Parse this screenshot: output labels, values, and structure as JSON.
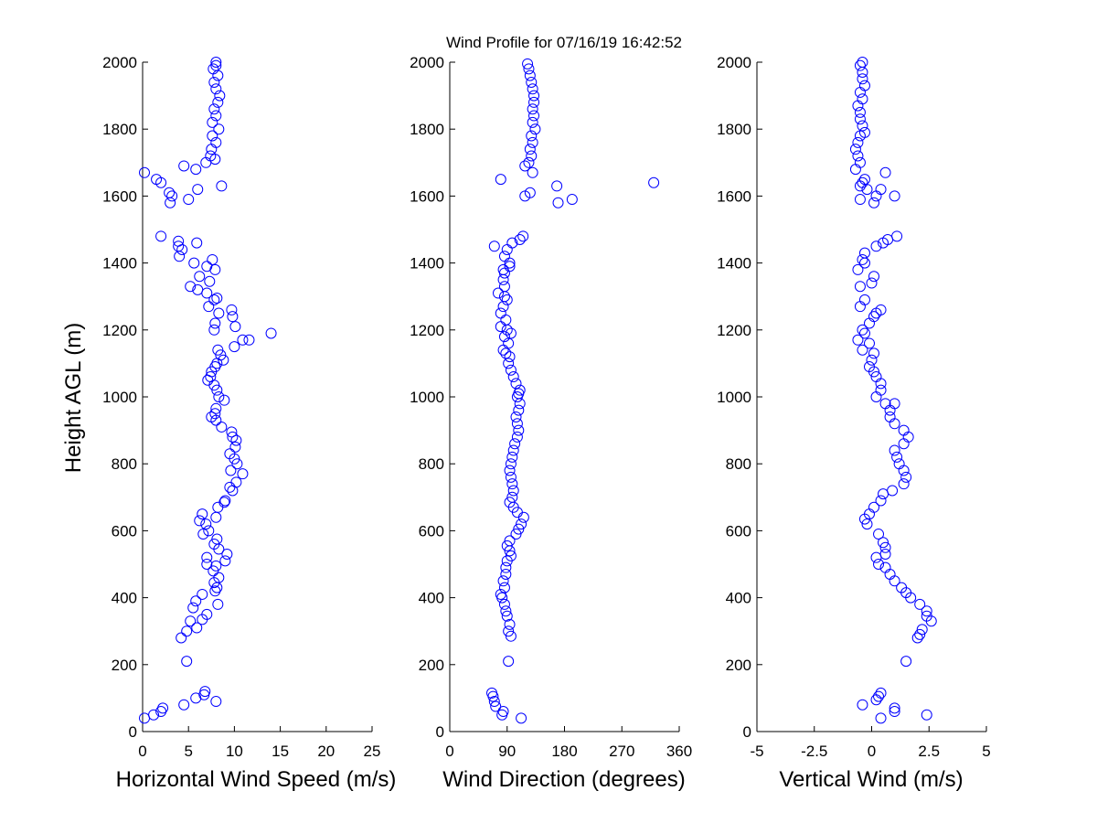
{
  "title": "Wind Profile for  07/16/19 16:42:52",
  "marker_color": "#0000ff",
  "chart_data": [
    {
      "type": "scatter",
      "xlabel": "Horizontal Wind Speed (m/s)",
      "ylabel": "Height AGL (m)",
      "xlim": [
        0,
        25
      ],
      "ylim": [
        0,
        2000
      ],
      "xticks": [
        "0",
        "5",
        "10",
        "15",
        "20",
        "25"
      ],
      "xtick_values": [
        0,
        5,
        10,
        15,
        20,
        25
      ],
      "yticks": [
        "0",
        "200",
        "400",
        "600",
        "800",
        "1000",
        "1200",
        "1400",
        "1600",
        "1800",
        "2000"
      ],
      "ytick_values": [
        0,
        200,
        400,
        600,
        800,
        1000,
        1200,
        1400,
        1600,
        1800,
        2000
      ],
      "grid": false,
      "points": [
        [
          0.2,
          40
        ],
        [
          1.2,
          50
        ],
        [
          2.0,
          60
        ],
        [
          2.2,
          70
        ],
        [
          4.5,
          80
        ],
        [
          5.8,
          100
        ],
        [
          6.7,
          110
        ],
        [
          6.8,
          120
        ],
        [
          8.0,
          90
        ],
        [
          4.8,
          210
        ],
        [
          4.2,
          280
        ],
        [
          4.8,
          300
        ],
        [
          5.9,
          310
        ],
        [
          5.2,
          330
        ],
        [
          6.5,
          335
        ],
        [
          7.0,
          350
        ],
        [
          5.5,
          370
        ],
        [
          5.8,
          390
        ],
        [
          8.2,
          380
        ],
        [
          6.5,
          410
        ],
        [
          7.9,
          420
        ],
        [
          8.1,
          430
        ],
        [
          7.8,
          445
        ],
        [
          8.3,
          460
        ],
        [
          7.7,
          480
        ],
        [
          8.0,
          495
        ],
        [
          7.0,
          500
        ],
        [
          9.0,
          510
        ],
        [
          7.0,
          520
        ],
        [
          9.2,
          530
        ],
        [
          8.3,
          545
        ],
        [
          7.8,
          560
        ],
        [
          8.1,
          575
        ],
        [
          6.6,
          590
        ],
        [
          7.2,
          600
        ],
        [
          6.2,
          630
        ],
        [
          6.5,
          650
        ],
        [
          8.0,
          640
        ],
        [
          6.9,
          620
        ],
        [
          8.2,
          670
        ],
        [
          8.9,
          685
        ],
        [
          9.0,
          690
        ],
        [
          9.8,
          720
        ],
        [
          9.5,
          730
        ],
        [
          10.2,
          745
        ],
        [
          10.9,
          770
        ],
        [
          9.6,
          780
        ],
        [
          10.3,
          800
        ],
        [
          10.0,
          815
        ],
        [
          9.5,
          830
        ],
        [
          10.1,
          850
        ],
        [
          10.2,
          870
        ],
        [
          9.8,
          880
        ],
        [
          9.7,
          895
        ],
        [
          8.6,
          910
        ],
        [
          8.0,
          930
        ],
        [
          7.5,
          940
        ],
        [
          7.9,
          950
        ],
        [
          8.0,
          965
        ],
        [
          8.9,
          990
        ],
        [
          8.3,
          1000
        ],
        [
          8.1,
          1020
        ],
        [
          7.8,
          1035
        ],
        [
          7.1,
          1050
        ],
        [
          7.4,
          1060
        ],
        [
          7.5,
          1075
        ],
        [
          7.9,
          1090
        ],
        [
          8.1,
          1100
        ],
        [
          8.8,
          1110
        ],
        [
          8.5,
          1125
        ],
        [
          8.2,
          1140
        ],
        [
          10.0,
          1150
        ],
        [
          10.9,
          1170
        ],
        [
          11.6,
          1170
        ],
        [
          14.0,
          1190
        ],
        [
          10.1,
          1210
        ],
        [
          7.8,
          1200
        ],
        [
          7.9,
          1220
        ],
        [
          9.8,
          1240
        ],
        [
          9.7,
          1260
        ],
        [
          8.3,
          1250
        ],
        [
          7.2,
          1270
        ],
        [
          7.8,
          1290
        ],
        [
          8.1,
          1295
        ],
        [
          7.0,
          1310
        ],
        [
          6.0,
          1320
        ],
        [
          5.2,
          1330
        ],
        [
          7.3,
          1345
        ],
        [
          6.2,
          1360
        ],
        [
          7.9,
          1380
        ],
        [
          7.0,
          1390
        ],
        [
          5.6,
          1400
        ],
        [
          7.6,
          1410
        ],
        [
          4.0,
          1420
        ],
        [
          4.3,
          1440
        ],
        [
          3.9,
          1450
        ],
        [
          3.9,
          1465
        ],
        [
          5.9,
          1460
        ],
        [
          2.0,
          1480
        ],
        [
          3.0,
          1580
        ],
        [
          3.2,
          1600
        ],
        [
          2.9,
          1610
        ],
        [
          5.0,
          1590
        ],
        [
          6.0,
          1620
        ],
        [
          8.6,
          1630
        ],
        [
          2.0,
          1640
        ],
        [
          1.5,
          1650
        ],
        [
          0.2,
          1670
        ],
        [
          4.5,
          1690
        ],
        [
          5.8,
          1680
        ],
        [
          6.9,
          1700
        ],
        [
          7.4,
          1720
        ],
        [
          7.9,
          1710
        ],
        [
          7.5,
          1740
        ],
        [
          8.0,
          1760
        ],
        [
          7.6,
          1780
        ],
        [
          8.3,
          1800
        ],
        [
          7.6,
          1820
        ],
        [
          8.0,
          1840
        ],
        [
          7.8,
          1860
        ],
        [
          8.2,
          1880
        ],
        [
          8.4,
          1900
        ],
        [
          8.0,
          1920
        ],
        [
          7.8,
          1940
        ],
        [
          8.2,
          1960
        ],
        [
          7.7,
          1980
        ],
        [
          8.0,
          1990
        ],
        [
          8.0,
          2000
        ]
      ]
    },
    {
      "type": "scatter",
      "xlabel": "Wind Direction (degrees)",
      "ylabel": "",
      "xlim": [
        0,
        360
      ],
      "ylim": [
        0,
        2000
      ],
      "xticks": [
        "0",
        "90",
        "180",
        "270",
        "360"
      ],
      "xtick_values": [
        0,
        90,
        180,
        270,
        360
      ],
      "yticks": [
        "0",
        "200",
        "400",
        "600",
        "800",
        "1000",
        "1200",
        "1400",
        "1600",
        "1800",
        "2000"
      ],
      "ytick_values": [
        0,
        200,
        400,
        600,
        800,
        1000,
        1200,
        1400,
        1600,
        1800,
        2000
      ],
      "grid": false,
      "points": [
        [
          112,
          40
        ],
        [
          82,
          50
        ],
        [
          84,
          60
        ],
        [
          72,
          75
        ],
        [
          70,
          90
        ],
        [
          68,
          105
        ],
        [
          66,
          115
        ],
        [
          92,
          210
        ],
        [
          96,
          285
        ],
        [
          92,
          300
        ],
        [
          94,
          320
        ],
        [
          90,
          345
        ],
        [
          88,
          360
        ],
        [
          86,
          380
        ],
        [
          82,
          400
        ],
        [
          80,
          410
        ],
        [
          86,
          430
        ],
        [
          84,
          450
        ],
        [
          88,
          470
        ],
        [
          88,
          490
        ],
        [
          90,
          510
        ],
        [
          96,
          525
        ],
        [
          94,
          540
        ],
        [
          90,
          555
        ],
        [
          94,
          570
        ],
        [
          104,
          590
        ],
        [
          108,
          605
        ],
        [
          112,
          620
        ],
        [
          116,
          640
        ],
        [
          106,
          655
        ],
        [
          100,
          670
        ],
        [
          94,
          685
        ],
        [
          98,
          700
        ],
        [
          100,
          720
        ],
        [
          98,
          740
        ],
        [
          96,
          760
        ],
        [
          94,
          780
        ],
        [
          96,
          800
        ],
        [
          98,
          820
        ],
        [
          100,
          840
        ],
        [
          102,
          860
        ],
        [
          106,
          880
        ],
        [
          108,
          900
        ],
        [
          106,
          920
        ],
        [
          104,
          940
        ],
        [
          108,
          960
        ],
        [
          110,
          980
        ],
        [
          106,
          1000
        ],
        [
          108,
          1010
        ],
        [
          110,
          1020
        ],
        [
          104,
          1040
        ],
        [
          100,
          1060
        ],
        [
          96,
          1080
        ],
        [
          92,
          1100
        ],
        [
          94,
          1120
        ],
        [
          88,
          1130
        ],
        [
          84,
          1140
        ],
        [
          92,
          1160
        ],
        [
          86,
          1180
        ],
        [
          96,
          1190
        ],
        [
          90,
          1200
        ],
        [
          80,
          1210
        ],
        [
          88,
          1230
        ],
        [
          80,
          1250
        ],
        [
          84,
          1270
        ],
        [
          90,
          1290
        ],
        [
          86,
          1300
        ],
        [
          76,
          1310
        ],
        [
          86,
          1330
        ],
        [
          84,
          1350
        ],
        [
          86,
          1370
        ],
        [
          84,
          1380
        ],
        [
          94,
          1390
        ],
        [
          94,
          1400
        ],
        [
          86,
          1420
        ],
        [
          90,
          1440
        ],
        [
          70,
          1450
        ],
        [
          98,
          1460
        ],
        [
          110,
          1470
        ],
        [
          115,
          1480
        ],
        [
          170,
          1580
        ],
        [
          118,
          1600
        ],
        [
          126,
          1610
        ],
        [
          168,
          1630
        ],
        [
          192,
          1590
        ],
        [
          80,
          1650
        ],
        [
          320,
          1640
        ],
        [
          130,
          1670
        ],
        [
          118,
          1690
        ],
        [
          124,
          1700
        ],
        [
          128,
          1720
        ],
        [
          126,
          1740
        ],
        [
          130,
          1760
        ],
        [
          128,
          1780
        ],
        [
          134,
          1800
        ],
        [
          130,
          1820
        ],
        [
          132,
          1840
        ],
        [
          130,
          1860
        ],
        [
          132,
          1880
        ],
        [
          132,
          1900
        ],
        [
          130,
          1920
        ],
        [
          128,
          1940
        ],
        [
          126,
          1960
        ],
        [
          124,
          1980
        ],
        [
          122,
          1995
        ]
      ]
    },
    {
      "type": "scatter",
      "xlabel": "Vertical Wind (m/s)",
      "ylabel": "",
      "xlim": [
        -5,
        5
      ],
      "ylim": [
        0,
        2000
      ],
      "xticks": [
        "-5",
        "-2.5",
        "0",
        "2.5",
        "5"
      ],
      "xtick_values": [
        -5,
        -2.5,
        0,
        2.5,
        5
      ],
      "yticks": [
        "0",
        "200",
        "400",
        "600",
        "800",
        "1000",
        "1200",
        "1400",
        "1600",
        "1800",
        "2000"
      ],
      "ytick_values": [
        0,
        200,
        400,
        600,
        800,
        1000,
        1200,
        1400,
        1600,
        1800,
        2000
      ],
      "grid": false,
      "points": [
        [
          0.4,
          40
        ],
        [
          2.4,
          50
        ],
        [
          1.0,
          60
        ],
        [
          1.0,
          70
        ],
        [
          -0.4,
          80
        ],
        [
          0.2,
          95
        ],
        [
          0.3,
          105
        ],
        [
          0.4,
          115
        ],
        [
          1.5,
          210
        ],
        [
          2.0,
          280
        ],
        [
          2.1,
          290
        ],
        [
          2.2,
          305
        ],
        [
          2.6,
          330
        ],
        [
          2.4,
          345
        ],
        [
          2.4,
          360
        ],
        [
          2.1,
          380
        ],
        [
          1.7,
          400
        ],
        [
          1.5,
          415
        ],
        [
          1.3,
          430
        ],
        [
          1.0,
          450
        ],
        [
          0.8,
          470
        ],
        [
          0.6,
          490
        ],
        [
          0.3,
          500
        ],
        [
          0.2,
          520
        ],
        [
          0.6,
          530
        ],
        [
          0.6,
          550
        ],
        [
          0.5,
          565
        ],
        [
          0.3,
          590
        ],
        [
          -0.2,
          620
        ],
        [
          -0.3,
          635
        ],
        [
          -0.1,
          650
        ],
        [
          0.1,
          670
        ],
        [
          0.4,
          690
        ],
        [
          0.5,
          710
        ],
        [
          0.9,
          720
        ],
        [
          1.4,
          740
        ],
        [
          1.5,
          760
        ],
        [
          1.4,
          780
        ],
        [
          1.2,
          800
        ],
        [
          1.1,
          820
        ],
        [
          1.0,
          840
        ],
        [
          1.4,
          860
        ],
        [
          1.6,
          880
        ],
        [
          1.4,
          900
        ],
        [
          1.0,
          920
        ],
        [
          0.8,
          940
        ],
        [
          0.8,
          960
        ],
        [
          0.6,
          980
        ],
        [
          1.0,
          980
        ],
        [
          0.2,
          1000
        ],
        [
          0.4,
          1020
        ],
        [
          0.4,
          1040
        ],
        [
          0.2,
          1060
        ],
        [
          0.1,
          1075
        ],
        [
          -0.1,
          1090
        ],
        [
          0.0,
          1110
        ],
        [
          0.1,
          1130
        ],
        [
          -0.4,
          1140
        ],
        [
          -0.1,
          1160
        ],
        [
          -0.6,
          1170
        ],
        [
          -0.3,
          1190
        ],
        [
          -0.4,
          1200
        ],
        [
          -0.1,
          1220
        ],
        [
          0.1,
          1240
        ],
        [
          0.4,
          1260
        ],
        [
          0.2,
          1250
        ],
        [
          -0.3,
          1290
        ],
        [
          -0.5,
          1270
        ],
        [
          -0.5,
          1330
        ],
        [
          0.0,
          1340
        ],
        [
          0.1,
          1360
        ],
        [
          -0.3,
          1400
        ],
        [
          -0.6,
          1380
        ],
        [
          -0.4,
          1410
        ],
        [
          -0.3,
          1430
        ],
        [
          0.2,
          1450
        ],
        [
          0.5,
          1460
        ],
        [
          0.7,
          1470
        ],
        [
          1.1,
          1480
        ],
        [
          0.2,
          1600
        ],
        [
          -0.5,
          1590
        ],
        [
          0.1,
          1580
        ],
        [
          -0.5,
          1630
        ],
        [
          0.4,
          1620
        ],
        [
          1.0,
          1600
        ],
        [
          -0.2,
          1620
        ],
        [
          -0.4,
          1640
        ],
        [
          -0.3,
          1650
        ],
        [
          0.6,
          1670
        ],
        [
          -0.7,
          1680
        ],
        [
          -0.5,
          1700
        ],
        [
          -0.6,
          1720
        ],
        [
          -0.7,
          1740
        ],
        [
          -0.6,
          1760
        ],
        [
          -0.5,
          1780
        ],
        [
          -0.3,
          1790
        ],
        [
          -0.4,
          1810
        ],
        [
          -0.5,
          1830
        ],
        [
          -0.5,
          1850
        ],
        [
          -0.6,
          1870
        ],
        [
          -0.4,
          1890
        ],
        [
          -0.5,
          1910
        ],
        [
          -0.3,
          1930
        ],
        [
          -0.4,
          1950
        ],
        [
          -0.4,
          1970
        ],
        [
          -0.5,
          1990
        ],
        [
          -0.4,
          2000
        ]
      ]
    }
  ]
}
